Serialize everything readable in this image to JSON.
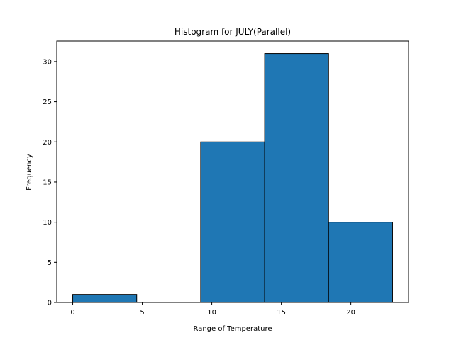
{
  "chart_data": {
    "type": "bar",
    "title": "Histogram for JULY(Parallel)",
    "xlabel": "Range of Temperature",
    "ylabel": "Frequency",
    "bins": [
      {
        "start": 0,
        "end": 4.6,
        "count": 1
      },
      {
        "start": 4.6,
        "end": 9.2,
        "count": 0
      },
      {
        "start": 9.2,
        "end": 13.8,
        "count": 20
      },
      {
        "start": 13.8,
        "end": 18.4,
        "count": 31
      },
      {
        "start": 18.4,
        "end": 23,
        "count": 10
      }
    ],
    "xlim": [
      -1.15,
      24.15
    ],
    "ylim": [
      0,
      32.55
    ],
    "xticks": [
      0,
      5,
      10,
      15,
      20
    ],
    "yticks": [
      0,
      5,
      10,
      15,
      20,
      25,
      30
    ],
    "grid": false,
    "bar_color": "#1f77b4",
    "edge_color": "#000000"
  }
}
